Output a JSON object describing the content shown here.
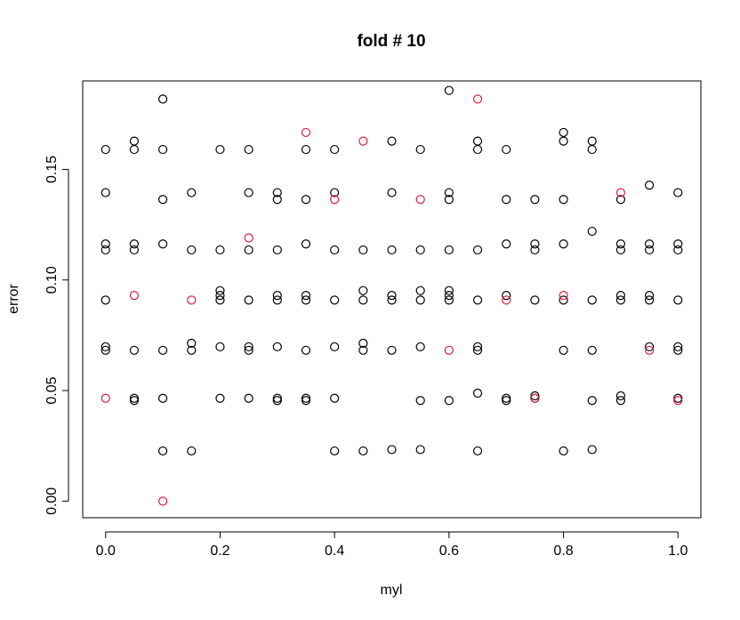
{
  "chart_data": {
    "type": "scatter",
    "title": "fold #  10",
    "xlabel": "myl",
    "ylabel": "error",
    "xlim": [
      -0.04,
      1.04
    ],
    "ylim": [
      -0.0075,
      0.19
    ],
    "xticks": [
      0.0,
      0.2,
      0.4,
      0.6,
      0.8,
      1.0
    ],
    "xtick_labels": [
      "0.0",
      "0.2",
      "0.4",
      "0.6",
      "0.8",
      "1.0"
    ],
    "yticks": [
      0.0,
      0.05,
      0.1,
      0.15
    ],
    "ytick_labels": [
      "0.00",
      "0.05",
      "0.10",
      "0.15"
    ],
    "grid": false,
    "colors": {
      "black_series": "#000000",
      "red_series": "#df1f3b"
    },
    "series": [
      {
        "color": "#000000",
        "points": [
          [
            0.0,
            0.159
          ],
          [
            0.0,
            0.1395
          ],
          [
            0.0,
            0.1163
          ],
          [
            0.0,
            0.1136
          ],
          [
            0.0,
            0.0909
          ],
          [
            0.0,
            0.0698
          ],
          [
            0.0,
            0.0682
          ],
          [
            0.05,
            0.1628
          ],
          [
            0.05,
            0.159
          ],
          [
            0.05,
            0.1163
          ],
          [
            0.05,
            0.1136
          ],
          [
            0.05,
            0.0682
          ],
          [
            0.05,
            0.0465
          ],
          [
            0.05,
            0.0455
          ],
          [
            0.1,
            0.1818
          ],
          [
            0.1,
            0.159
          ],
          [
            0.1,
            0.1364
          ],
          [
            0.1,
            0.1163
          ],
          [
            0.1,
            0.0682
          ],
          [
            0.1,
            0.0465
          ],
          [
            0.1,
            0.0227
          ],
          [
            0.15,
            0.1395
          ],
          [
            0.15,
            0.1136
          ],
          [
            0.15,
            0.0714
          ],
          [
            0.15,
            0.0682
          ],
          [
            0.15,
            0.0227
          ],
          [
            0.2,
            0.159
          ],
          [
            0.2,
            0.1136
          ],
          [
            0.2,
            0.0952
          ],
          [
            0.2,
            0.093
          ],
          [
            0.2,
            0.0909
          ],
          [
            0.2,
            0.0698
          ],
          [
            0.2,
            0.0465
          ],
          [
            0.25,
            0.159
          ],
          [
            0.25,
            0.1395
          ],
          [
            0.25,
            0.1136
          ],
          [
            0.25,
            0.0909
          ],
          [
            0.25,
            0.0698
          ],
          [
            0.25,
            0.0682
          ],
          [
            0.25,
            0.0465
          ],
          [
            0.3,
            0.1395
          ],
          [
            0.3,
            0.1364
          ],
          [
            0.3,
            0.1136
          ],
          [
            0.3,
            0.093
          ],
          [
            0.3,
            0.0909
          ],
          [
            0.3,
            0.0698
          ],
          [
            0.3,
            0.0465
          ],
          [
            0.3,
            0.0455
          ],
          [
            0.35,
            0.159
          ],
          [
            0.35,
            0.1364
          ],
          [
            0.35,
            0.1163
          ],
          [
            0.35,
            0.093
          ],
          [
            0.35,
            0.0909
          ],
          [
            0.35,
            0.0682
          ],
          [
            0.35,
            0.0465
          ],
          [
            0.35,
            0.0455
          ],
          [
            0.4,
            0.159
          ],
          [
            0.4,
            0.1395
          ],
          [
            0.4,
            0.1136
          ],
          [
            0.4,
            0.0909
          ],
          [
            0.4,
            0.0698
          ],
          [
            0.4,
            0.0465
          ],
          [
            0.4,
            0.0227
          ],
          [
            0.45,
            0.1136
          ],
          [
            0.45,
            0.0952
          ],
          [
            0.45,
            0.0909
          ],
          [
            0.45,
            0.0714
          ],
          [
            0.45,
            0.0682
          ],
          [
            0.45,
            0.0227
          ],
          [
            0.5,
            0.1628
          ],
          [
            0.5,
            0.1395
          ],
          [
            0.5,
            0.1136
          ],
          [
            0.5,
            0.093
          ],
          [
            0.5,
            0.0909
          ],
          [
            0.5,
            0.0682
          ],
          [
            0.5,
            0.0233
          ],
          [
            0.55,
            0.159
          ],
          [
            0.55,
            0.1136
          ],
          [
            0.55,
            0.0952
          ],
          [
            0.55,
            0.0909
          ],
          [
            0.55,
            0.0698
          ],
          [
            0.55,
            0.0455
          ],
          [
            0.55,
            0.0233
          ],
          [
            0.6,
            0.1857
          ],
          [
            0.6,
            0.1395
          ],
          [
            0.6,
            0.1364
          ],
          [
            0.6,
            0.1136
          ],
          [
            0.6,
            0.0952
          ],
          [
            0.6,
            0.093
          ],
          [
            0.6,
            0.0909
          ],
          [
            0.6,
            0.0455
          ],
          [
            0.65,
            0.1628
          ],
          [
            0.65,
            0.159
          ],
          [
            0.65,
            0.1136
          ],
          [
            0.65,
            0.0909
          ],
          [
            0.65,
            0.0698
          ],
          [
            0.65,
            0.0682
          ],
          [
            0.65,
            0.0488
          ],
          [
            0.65,
            0.0227
          ],
          [
            0.7,
            0.159
          ],
          [
            0.7,
            0.1364
          ],
          [
            0.7,
            0.1163
          ],
          [
            0.7,
            0.093
          ],
          [
            0.7,
            0.0465
          ],
          [
            0.7,
            0.0455
          ],
          [
            0.75,
            0.1364
          ],
          [
            0.75,
            0.1163
          ],
          [
            0.75,
            0.1136
          ],
          [
            0.75,
            0.0909
          ],
          [
            0.75,
            0.0476
          ],
          [
            0.75,
            0.0465
          ],
          [
            0.8,
            0.1667
          ],
          [
            0.8,
            0.1628
          ],
          [
            0.8,
            0.1364
          ],
          [
            0.8,
            0.1163
          ],
          [
            0.8,
            0.0909
          ],
          [
            0.8,
            0.0682
          ],
          [
            0.8,
            0.0227
          ],
          [
            0.85,
            0.1628
          ],
          [
            0.85,
            0.159
          ],
          [
            0.85,
            0.122
          ],
          [
            0.85,
            0.0909
          ],
          [
            0.85,
            0.0682
          ],
          [
            0.85,
            0.0455
          ],
          [
            0.85,
            0.0233
          ],
          [
            0.9,
            0.1364
          ],
          [
            0.9,
            0.1163
          ],
          [
            0.9,
            0.1136
          ],
          [
            0.9,
            0.093
          ],
          [
            0.9,
            0.0909
          ],
          [
            0.9,
            0.0476
          ],
          [
            0.9,
            0.0455
          ],
          [
            0.95,
            0.1429
          ],
          [
            0.95,
            0.1163
          ],
          [
            0.95,
            0.1136
          ],
          [
            0.95,
            0.093
          ],
          [
            0.95,
            0.0909
          ],
          [
            0.95,
            0.0698
          ],
          [
            1.0,
            0.1395
          ],
          [
            1.0,
            0.1163
          ],
          [
            1.0,
            0.1136
          ],
          [
            1.0,
            0.0909
          ],
          [
            1.0,
            0.0698
          ],
          [
            1.0,
            0.0682
          ],
          [
            1.0,
            0.0465
          ]
        ]
      },
      {
        "color": "#df1f3b",
        "points": [
          [
            0.0,
            0.0465
          ],
          [
            0.05,
            0.093
          ],
          [
            0.1,
            0.0
          ],
          [
            0.15,
            0.0909
          ],
          [
            0.25,
            0.119
          ],
          [
            0.35,
            0.1667
          ],
          [
            0.4,
            0.1364
          ],
          [
            0.45,
            0.1628
          ],
          [
            0.55,
            0.1364
          ],
          [
            0.6,
            0.0682
          ],
          [
            0.65,
            0.1818
          ],
          [
            0.7,
            0.0909
          ],
          [
            0.75,
            0.0465
          ],
          [
            0.8,
            0.093
          ],
          [
            0.9,
            0.1395
          ],
          [
            0.95,
            0.0682
          ],
          [
            1.0,
            0.0455
          ]
        ]
      }
    ]
  }
}
